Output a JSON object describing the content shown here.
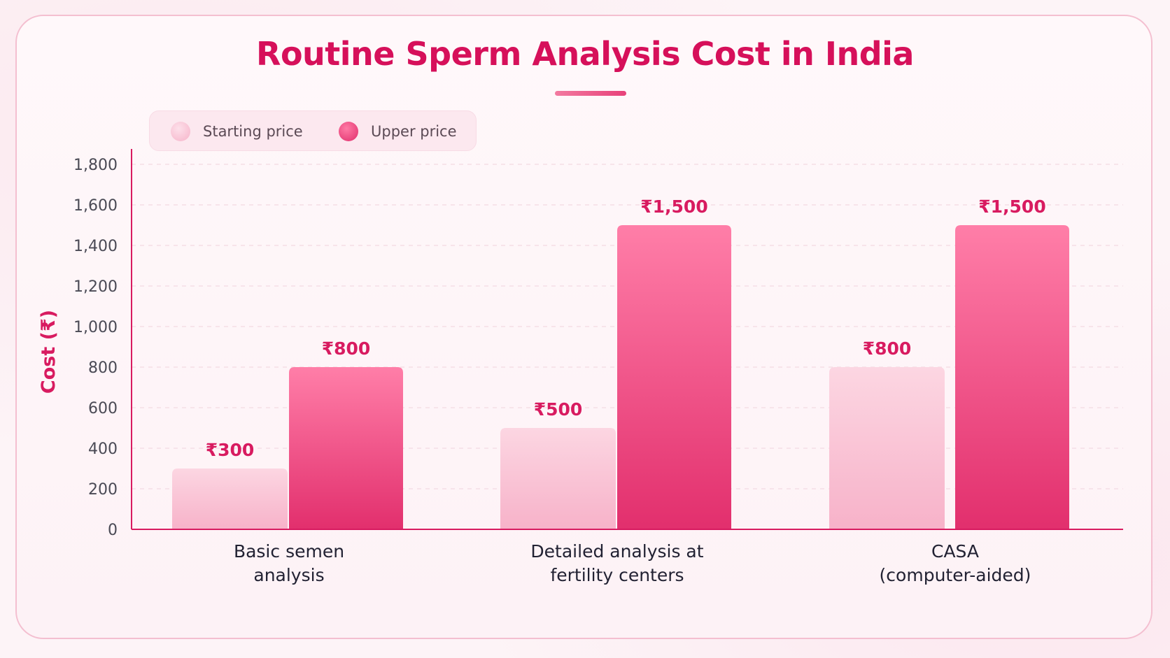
{
  "title": "Routine Sperm Analysis Cost in India",
  "legend": {
    "starting_label": "Starting price",
    "upper_label": "Upper price"
  },
  "colors": {
    "title": "#d6105a",
    "accent": "#d81b60",
    "starting_light": "#fdd3e0",
    "starting_dark": "#f7b1c8",
    "upper_light": "#ff7ca6",
    "upper_dark": "#e2306e",
    "tick_text": "#4a4a55",
    "category_text": "#222233"
  },
  "chart_data": {
    "type": "bar",
    "title": "Routine Sperm Analysis Cost in India",
    "ylabel": "Cost (₹)",
    "xlabel": "",
    "ylim": [
      0,
      1800
    ],
    "yticks": [
      0,
      200,
      400,
      600,
      800,
      1000,
      1200,
      1400,
      1600,
      1800
    ],
    "ytick_labels": [
      "0",
      "200",
      "400",
      "600",
      "800",
      "1,000",
      "1,200",
      "1,400",
      "1,600",
      "1,800"
    ],
    "grid": true,
    "legend_position": "top-left",
    "categories": [
      [
        "Basic semen",
        "analysis"
      ],
      [
        "Detailed analysis at",
        "fertility centers"
      ],
      [
        "CASA",
        "(computer-aided)"
      ]
    ],
    "series": [
      {
        "name": "Starting price",
        "values": [
          300,
          500,
          800
        ],
        "labels": [
          "₹300",
          "₹500",
          "₹800"
        ]
      },
      {
        "name": "Upper price",
        "values": [
          800,
          1500,
          1500
        ],
        "labels": [
          "₹800",
          "₹1,500",
          "₹1,500"
        ]
      }
    ]
  }
}
